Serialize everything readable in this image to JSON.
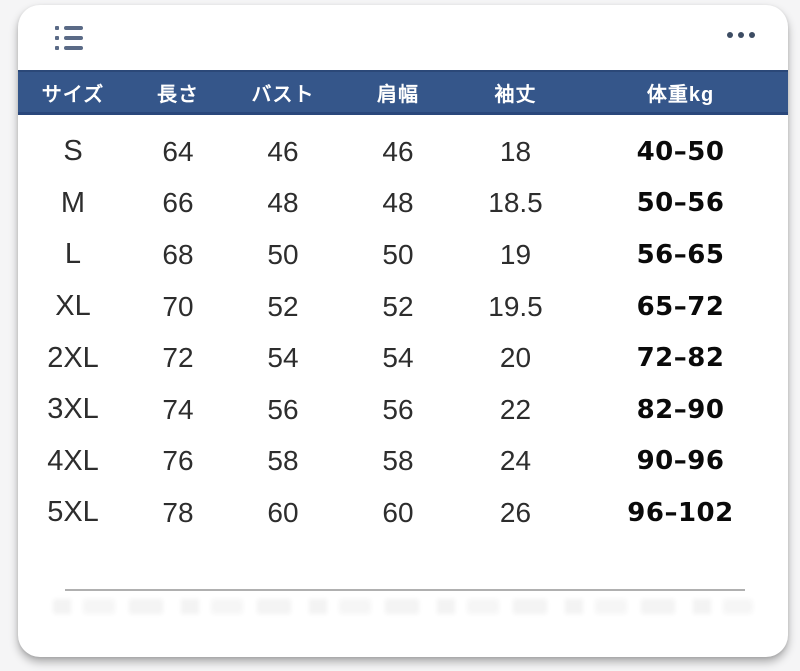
{
  "colors": {
    "page_bg": "#f5f5f6",
    "card_bg": "#ffffff",
    "header_bg": "#35568a",
    "header_border": "#2a477b",
    "header_text": "#ffffff",
    "body_text": "#2d2d2d",
    "weight_text": "#0a0a0a",
    "divider": "#b0b0b0",
    "icon": "#5a6a86"
  },
  "toolbar": {
    "icons": {
      "list": "list-icon",
      "more": "ellipsis-icon"
    }
  },
  "table": {
    "headers": [
      "サイズ",
      "長さ",
      "バスト",
      "肩幅",
      "袖丈",
      "体重kg"
    ],
    "rows": [
      {
        "size": "S",
        "length": "64",
        "bust": "46",
        "shoulder": "46",
        "sleeve": "18",
        "weight": "40–50"
      },
      {
        "size": "M",
        "length": "66",
        "bust": "48",
        "shoulder": "48",
        "sleeve": "18.5",
        "weight": "50–56"
      },
      {
        "size": "L",
        "length": "68",
        "bust": "50",
        "shoulder": "50",
        "sleeve": "19",
        "weight": "56–65"
      },
      {
        "size": "XL",
        "length": "70",
        "bust": "52",
        "shoulder": "52",
        "sleeve": "19.5",
        "weight": "65–72"
      },
      {
        "size": "2XL",
        "length": "72",
        "bust": "54",
        "shoulder": "54",
        "sleeve": "20",
        "weight": "72–82"
      },
      {
        "size": "3XL",
        "length": "74",
        "bust": "56",
        "shoulder": "56",
        "sleeve": "22",
        "weight": "82–90"
      },
      {
        "size": "4XL",
        "length": "76",
        "bust": "58",
        "shoulder": "58",
        "sleeve": "24",
        "weight": "90–96"
      },
      {
        "size": "5XL",
        "length": "78",
        "bust": "60",
        "shoulder": "60",
        "sleeve": "26",
        "weight": "96–102"
      }
    ]
  }
}
